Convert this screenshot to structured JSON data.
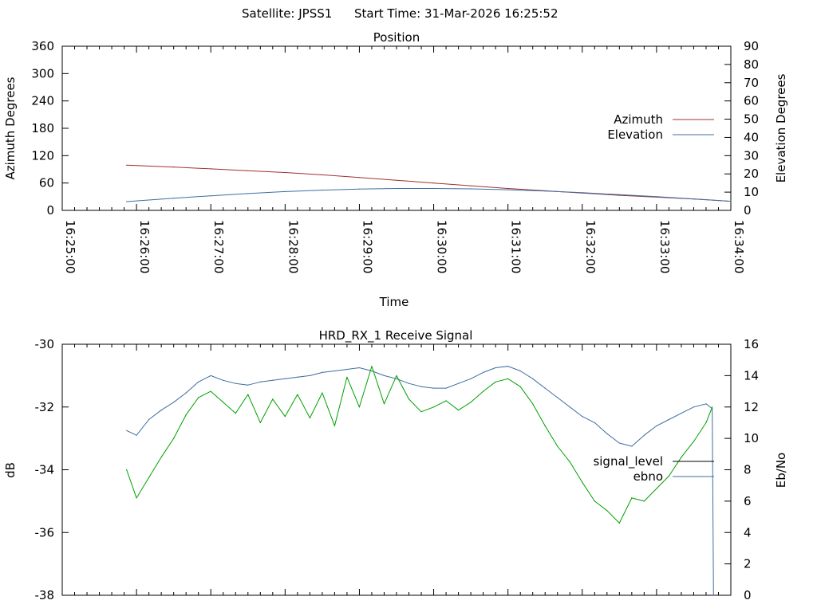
{
  "header": {
    "satellite_label": "Satellite: JPSS1",
    "start_time_label": "Start Time: 31-Mar-2026 16:25:52"
  },
  "chart_data": [
    {
      "type": "line",
      "title": "Position",
      "xlabel": "Time",
      "ylabel": "Azimuth Degrees",
      "y2label": "Elevation Degrees",
      "x_ticks": [
        "16:25:00",
        "16:26:00",
        "16:27:00",
        "16:28:00",
        "16:29:00",
        "16:30:00",
        "16:31:00",
        "16:32:00",
        "16:33:00",
        "16:34:00"
      ],
      "xlim": [
        "16:25:00",
        "16:34:00"
      ],
      "ylim": [
        0,
        360
      ],
      "y_ticks": [
        0,
        60,
        120,
        180,
        240,
        300,
        360
      ],
      "y2lim": [
        0,
        90
      ],
      "y2_ticks": [
        0,
        10,
        20,
        30,
        40,
        50,
        60,
        70,
        80,
        90
      ],
      "grid": false,
      "legend_position": "right",
      "series": [
        {
          "name": "Azimuth",
          "axis": "y",
          "color": "#a0302f",
          "x": [
            "16:25:52",
            "16:26:30",
            "16:27:00",
            "16:27:30",
            "16:28:00",
            "16:28:30",
            "16:29:00",
            "16:29:30",
            "16:30:00",
            "16:30:30",
            "16:31:00",
            "16:31:30",
            "16:32:00",
            "16:32:30",
            "16:33:00",
            "16:33:30",
            "16:34:00"
          ],
          "values": [
            99,
            95,
            91,
            87,
            83,
            78,
            72,
            66,
            60,
            54,
            48,
            43,
            38,
            33,
            29,
            25,
            20
          ]
        },
        {
          "name": "Elevation",
          "axis": "y2",
          "color": "#3c6ea0",
          "x": [
            "16:25:52",
            "16:26:30",
            "16:27:00",
            "16:27:30",
            "16:28:00",
            "16:28:30",
            "16:29:00",
            "16:29:30",
            "16:30:00",
            "16:30:30",
            "16:31:00",
            "16:31:30",
            "16:32:00",
            "16:32:30",
            "16:33:00",
            "16:33:30",
            "16:34:00"
          ],
          "values": [
            4.8,
            6.7,
            8.0,
            9.2,
            10.3,
            11.1,
            11.7,
            12.0,
            12.0,
            11.8,
            11.3,
            10.6,
            9.7,
            8.6,
            7.5,
            6.3,
            5.0
          ]
        }
      ]
    },
    {
      "type": "line",
      "title": "HRD_RX_1 Receive Signal",
      "ylabel": "dB",
      "y2label": "Eb/No",
      "xlim": [
        "16:25:00",
        "16:34:00"
      ],
      "ylim": [
        -38,
        -30
      ],
      "y_ticks": [
        -38,
        -36,
        -34,
        -32,
        -30
      ],
      "y2lim": [
        0,
        16
      ],
      "y2_ticks": [
        0,
        2,
        4,
        6,
        8,
        10,
        12,
        14,
        16
      ],
      "grid": false,
      "legend_position": "right",
      "series": [
        {
          "name": "signal_level",
          "axis": "y",
          "color": "#000000",
          "x": [],
          "values": []
        },
        {
          "name": "ebno",
          "axis": "y2",
          "color": "#3c6ea0",
          "x": [
            "16:25:52",
            "16:26:00",
            "16:26:10",
            "16:26:20",
            "16:26:30",
            "16:26:40",
            "16:26:50",
            "16:27:00",
            "16:27:10",
            "16:27:20",
            "16:27:30",
            "16:27:40",
            "16:27:50",
            "16:28:00",
            "16:28:10",
            "16:28:20",
            "16:28:30",
            "16:28:40",
            "16:28:50",
            "16:29:00",
            "16:29:10",
            "16:29:20",
            "16:29:30",
            "16:29:40",
            "16:29:50",
            "16:30:00",
            "16:30:10",
            "16:30:20",
            "16:30:30",
            "16:30:40",
            "16:30:50",
            "16:31:00",
            "16:31:10",
            "16:31:20",
            "16:31:30",
            "16:31:40",
            "16:31:50",
            "16:32:00",
            "16:32:10",
            "16:32:20",
            "16:32:30",
            "16:32:40",
            "16:32:50",
            "16:33:00",
            "16:33:10",
            "16:33:20",
            "16:33:30",
            "16:33:40",
            "16:33:45",
            "16:33:46"
          ],
          "values": [
            10.5,
            10.2,
            11.2,
            11.8,
            12.3,
            12.9,
            13.6,
            14.0,
            13.7,
            13.5,
            13.4,
            13.6,
            13.7,
            13.8,
            13.9,
            14.0,
            14.2,
            14.3,
            14.4,
            14.5,
            14.3,
            14.0,
            13.8,
            13.5,
            13.3,
            13.2,
            13.2,
            13.5,
            13.8,
            14.2,
            14.5,
            14.6,
            14.3,
            13.8,
            13.2,
            12.6,
            12.0,
            11.4,
            11.0,
            10.3,
            9.7,
            9.5,
            10.2,
            10.8,
            11.2,
            11.6,
            12.0,
            12.2,
            11.9,
            0.0
          ]
        },
        {
          "name": "",
          "axis": "y2",
          "color": "#00a000",
          "x": [
            "16:25:52",
            "16:26:00",
            "16:26:10",
            "16:26:20",
            "16:26:30",
            "16:26:40",
            "16:26:50",
            "16:27:00",
            "16:27:10",
            "16:27:20",
            "16:27:30",
            "16:27:40",
            "16:27:50",
            "16:28:00",
            "16:28:10",
            "16:28:20",
            "16:28:30",
            "16:28:40",
            "16:28:50",
            "16:29:00",
            "16:29:10",
            "16:29:20",
            "16:29:30",
            "16:29:40",
            "16:29:50",
            "16:30:00",
            "16:30:10",
            "16:30:20",
            "16:30:30",
            "16:30:40",
            "16:30:50",
            "16:31:00",
            "16:31:10",
            "16:31:20",
            "16:31:30",
            "16:31:40",
            "16:31:50",
            "16:32:00",
            "16:32:10",
            "16:32:20",
            "16:32:30",
            "16:32:40",
            "16:32:50",
            "16:33:00",
            "16:33:10",
            "16:33:20",
            "16:33:30",
            "16:33:40",
            "16:33:45"
          ],
          "values": [
            8.0,
            6.2,
            7.5,
            8.8,
            10.0,
            11.5,
            12.6,
            13.0,
            12.3,
            11.6,
            12.8,
            11.0,
            12.5,
            11.4,
            12.8,
            11.3,
            12.9,
            10.8,
            13.9,
            12.0,
            14.6,
            12.2,
            14.0,
            12.5,
            11.7,
            12.0,
            12.4,
            11.8,
            12.3,
            13.0,
            13.6,
            13.8,
            13.3,
            12.2,
            10.8,
            9.5,
            8.5,
            7.2,
            6.0,
            5.4,
            4.6,
            6.2,
            6.0,
            6.8,
            7.6,
            8.8,
            9.8,
            11.0,
            12.0
          ]
        }
      ]
    }
  ]
}
